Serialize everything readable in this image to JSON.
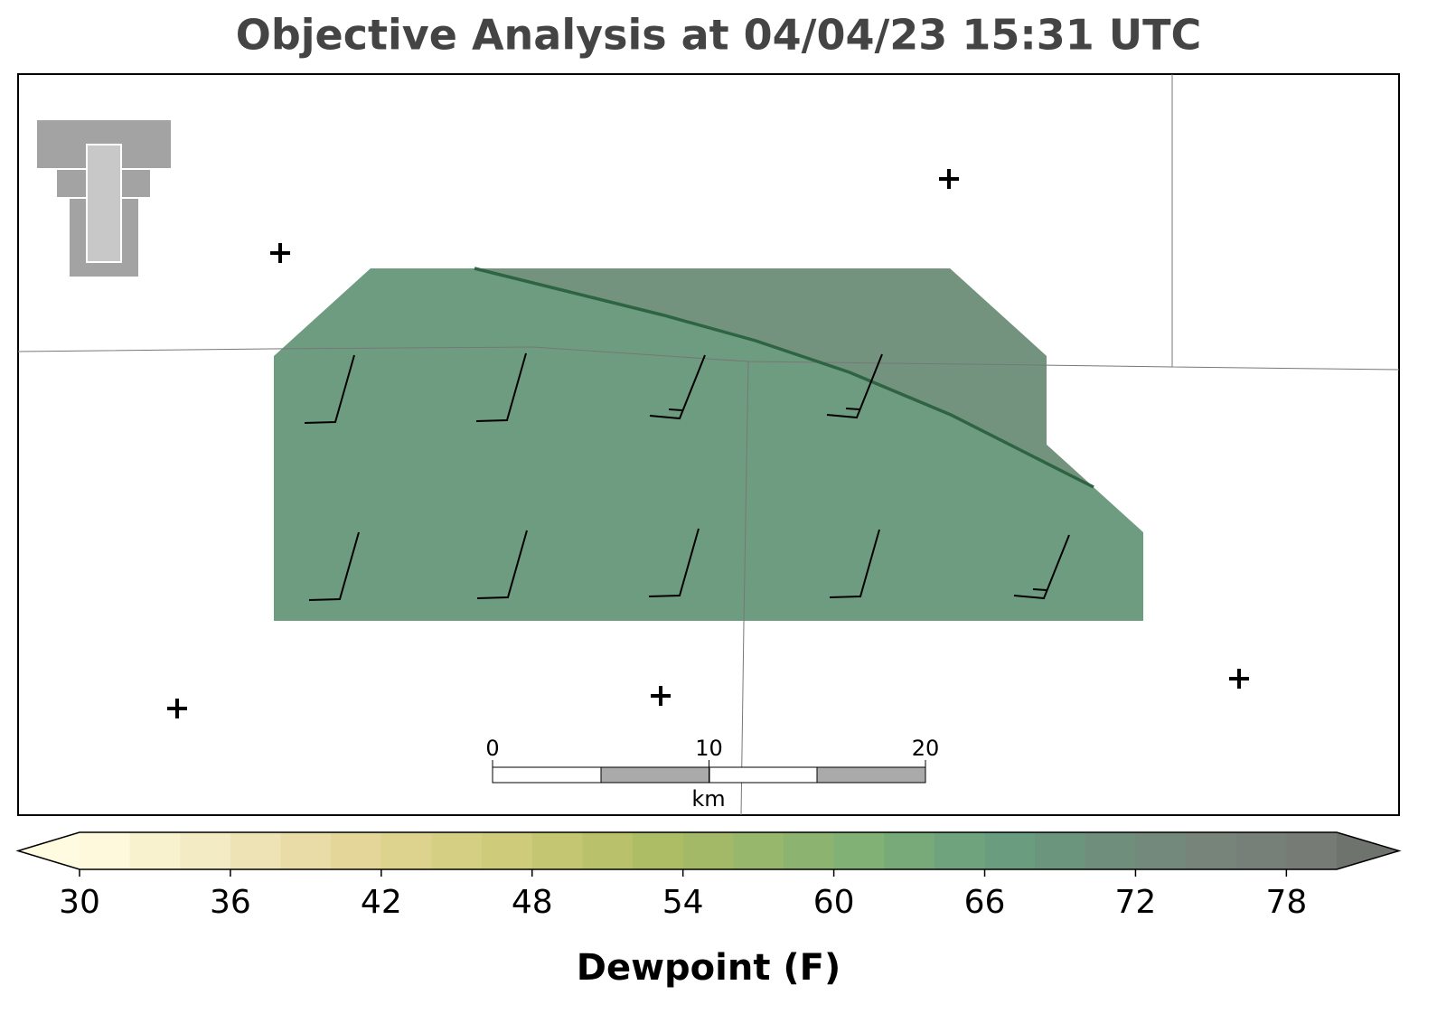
{
  "title": "Objective Analysis at 04/04/23 15:31 UTC",
  "scale_bar": {
    "ticks": [
      0,
      10,
      20
    ],
    "unit": "km"
  },
  "colorbar": {
    "label": "Dewpoint (F)",
    "range": [
      30,
      80
    ],
    "ticks": [
      30,
      36,
      42,
      48,
      54,
      60,
      66,
      72,
      78
    ],
    "under_color": "#fffbe0",
    "over_color": "#6e736e",
    "colors": [
      "#fef9dc",
      "#f8f2cf",
      "#f2ebc3",
      "#ede3b5",
      "#e9dca7",
      "#e4d599",
      "#ddd38f",
      "#d5cf84",
      "#cecb7b",
      "#c4c672",
      "#b9c26b",
      "#adbd66",
      "#a3b967",
      "#97b76c",
      "#8cb470",
      "#81b174",
      "#77aa78",
      "#6fa37d",
      "#6a9d80",
      "#6c957e",
      "#6f8f7c",
      "#73897b",
      "#76847a",
      "#777f79",
      "#777b76"
    ]
  }
}
